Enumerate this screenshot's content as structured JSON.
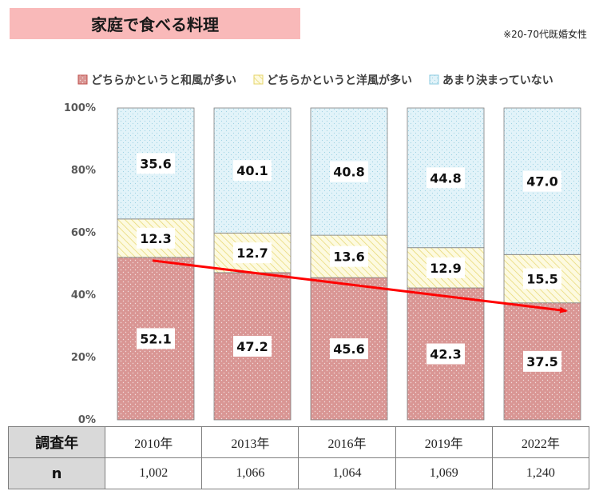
{
  "title": "家庭で食べる料理",
  "note": "※20-70代既婚女性",
  "table": {
    "year_header": "調査年",
    "n_header": "n",
    "years": [
      "2010年",
      "2013年",
      "2016年",
      "2019年",
      "2022年"
    ],
    "n_values": [
      "1,002",
      "1,066",
      "1,064",
      "1,069",
      "1,240"
    ]
  },
  "chart_data": {
    "type": "bar",
    "stacked": true,
    "percent_stacked": true,
    "categories": [
      "2010年",
      "2013年",
      "2016年",
      "2019年",
      "2022年"
    ],
    "series": [
      {
        "name": "どちらかというと和風が多い",
        "values": [
          52.1,
          47.2,
          45.6,
          42.3,
          37.5
        ],
        "color": "#d99694"
      },
      {
        "name": "どちらかというと洋風が多い",
        "values": [
          12.3,
          12.7,
          13.6,
          12.9,
          15.5
        ],
        "color": "#fdfacc"
      },
      {
        "name": "あまり決まっていない",
        "values": [
          35.6,
          40.1,
          40.8,
          44.8,
          47.0
        ],
        "color": "#dcf0f7"
      }
    ],
    "y_ticks": [
      "0%",
      "20%",
      "40%",
      "60%",
      "80%",
      "100%"
    ],
    "ylim": [
      0,
      100
    ],
    "legend_position": "top",
    "trend_arrow": {
      "color": "#ff0000",
      "from_category": "2010年",
      "to_category": "2022年",
      "series": "どちらかというと和風が多い"
    }
  }
}
